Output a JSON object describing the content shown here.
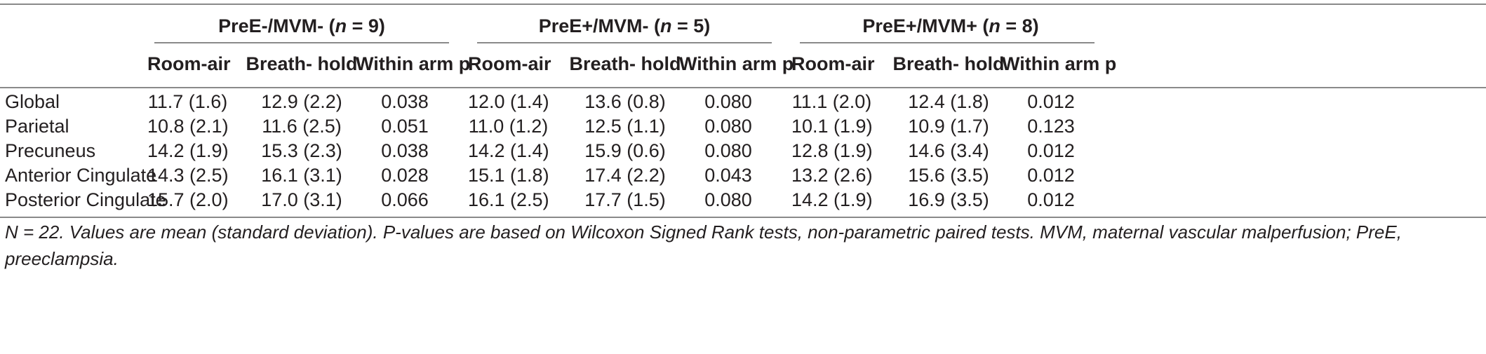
{
  "table": {
    "groups": [
      {
        "label": "PreE-/MVM- (",
        "n": "n",
        "rest": " = 9)"
      },
      {
        "label": "PreE+/MVM- (",
        "n": "n",
        "rest": " = 5)"
      },
      {
        "label": "PreE+/MVM+ (",
        "n": "n",
        "rest": " = 8)"
      }
    ],
    "subheaders": [
      "Room-air",
      "Breath- hold",
      "Within arm p"
    ],
    "rows": [
      {
        "label": "Global",
        "cells": [
          "11.7 (1.6)",
          "12.9 (2.2)",
          "0.038",
          "12.0 (1.4)",
          "13.6 (0.8)",
          "0.080",
          "11.1 (2.0)",
          "12.4 (1.8)",
          "0.012"
        ]
      },
      {
        "label": "Parietal",
        "cells": [
          "10.8 (2.1)",
          "11.6 (2.5)",
          "0.051",
          "11.0 (1.2)",
          "12.5 (1.1)",
          "0.080",
          "10.1 (1.9)",
          "10.9 (1.7)",
          "0.123"
        ]
      },
      {
        "label": "Precuneus",
        "cells": [
          "14.2 (1.9)",
          "15.3 (2.3)",
          "0.038",
          "14.2 (1.4)",
          "15.9 (0.6)",
          "0.080",
          "12.8 (1.9)",
          "14.6 (3.4)",
          "0.012"
        ]
      },
      {
        "label": "Anterior Cingulate",
        "cells": [
          "14.3 (2.5)",
          "16.1 (3.1)",
          "0.028",
          "15.1 (1.8)",
          "17.4 (2.2)",
          "0.043",
          "13.2 (2.6)",
          "15.6 (3.5)",
          "0.012"
        ]
      },
      {
        "label": "Posterior Cingulate",
        "cells": [
          "15.7 (2.0)",
          "17.0 (3.1)",
          "0.066",
          "16.1 (2.5)",
          "17.7 (1.5)",
          "0.080",
          "14.2 (1.9)",
          "16.9 (3.5)",
          "0.012"
        ]
      }
    ],
    "footnote": "N = 22. Values are mean (standard deviation). P-values are based on Wilcoxon Signed Rank tests, non-parametric paired tests. MVM, maternal vascular malperfusion; PreE, preeclampsia."
  }
}
